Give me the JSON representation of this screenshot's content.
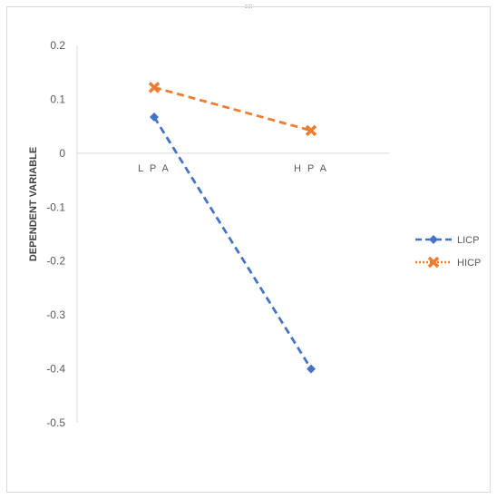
{
  "chart_data": {
    "type": "line",
    "title": "",
    "xlabel": "",
    "ylabel": "DEPENDENT VARIABLE",
    "categories": [
      "LPA",
      "HPA"
    ],
    "category_labels": [
      "L P A",
      "H P A"
    ],
    "ylim": [
      -0.5,
      0.2
    ],
    "yticks": [
      0.2,
      0.1,
      0,
      -0.1,
      -0.2,
      -0.3,
      -0.4,
      -0.5
    ],
    "ytick_labels": [
      "0.2",
      "0.1",
      "0",
      "-0.1",
      "-0.2",
      "-0.3",
      "-0.4",
      "-0.5"
    ],
    "grid": false,
    "legend_position": "right",
    "series": [
      {
        "name": "LICP",
        "values": [
          0.067,
          -0.4
        ],
        "color": "#4472c4",
        "line_style": "dashed",
        "marker": "diamond"
      },
      {
        "name": "HICP",
        "values": [
          0.122,
          0.042
        ],
        "color": "#ed7d31",
        "line_style": "dashed",
        "marker": "x"
      }
    ]
  }
}
